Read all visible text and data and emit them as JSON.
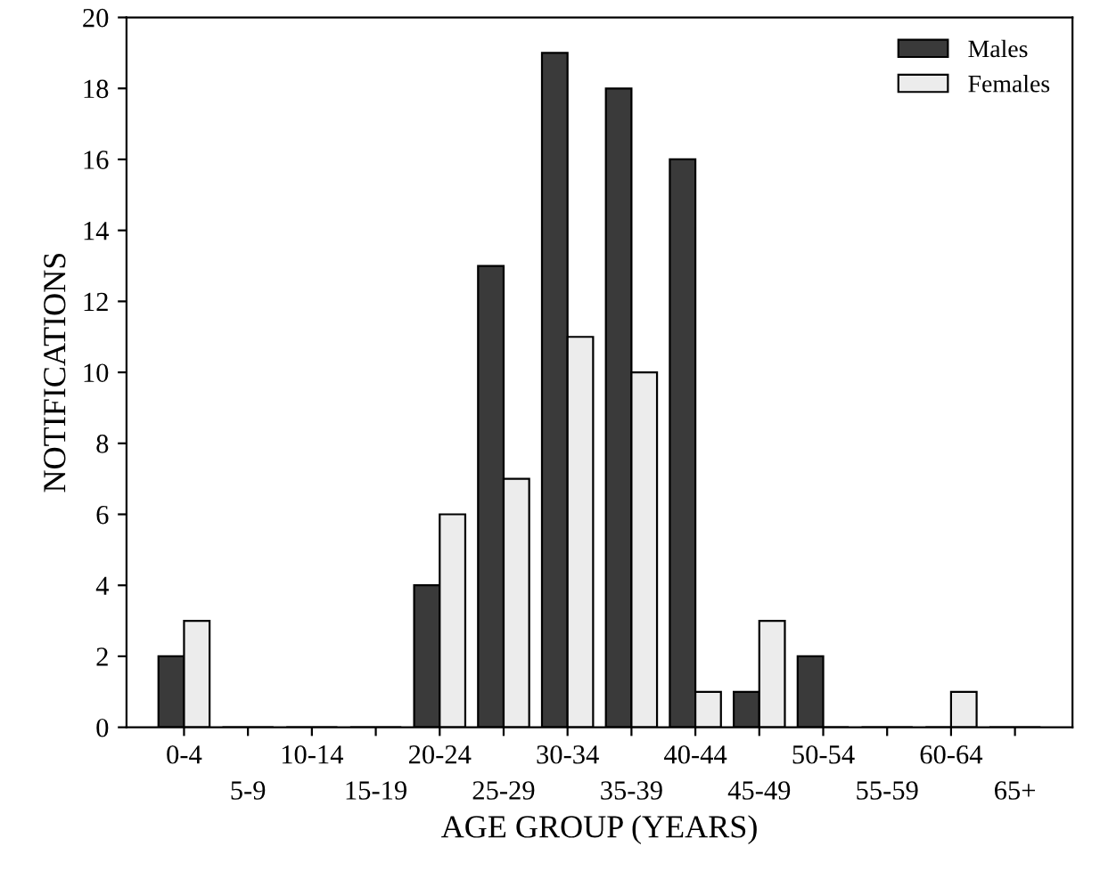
{
  "chart_data": {
    "type": "bar",
    "xlabel": "AGE GROUP (YEARS)",
    "ylabel": "NOTIFICATIONS",
    "categories": [
      "0-4",
      "5-9",
      "10-14",
      "15-19",
      "20-24",
      "25-29",
      "30-34",
      "35-39",
      "40-44",
      "45-49",
      "50-54",
      "55-59",
      "60-64",
      "65+"
    ],
    "series": [
      {
        "name": "Males",
        "color": "#3a3a3a",
        "values": [
          2,
          0,
          0,
          0,
          4,
          13,
          19,
          18,
          16,
          1,
          2,
          0,
          0,
          0
        ]
      },
      {
        "name": "Females",
        "color": "#ececec",
        "values": [
          3,
          0,
          0,
          0,
          6,
          7,
          11,
          10,
          1,
          3,
          0,
          0,
          1,
          0
        ]
      }
    ],
    "ylim": [
      0,
      20
    ],
    "yticks": [
      0,
      2,
      4,
      6,
      8,
      10,
      12,
      14,
      16,
      18,
      20
    ],
    "grid": false,
    "legend": "top right"
  }
}
